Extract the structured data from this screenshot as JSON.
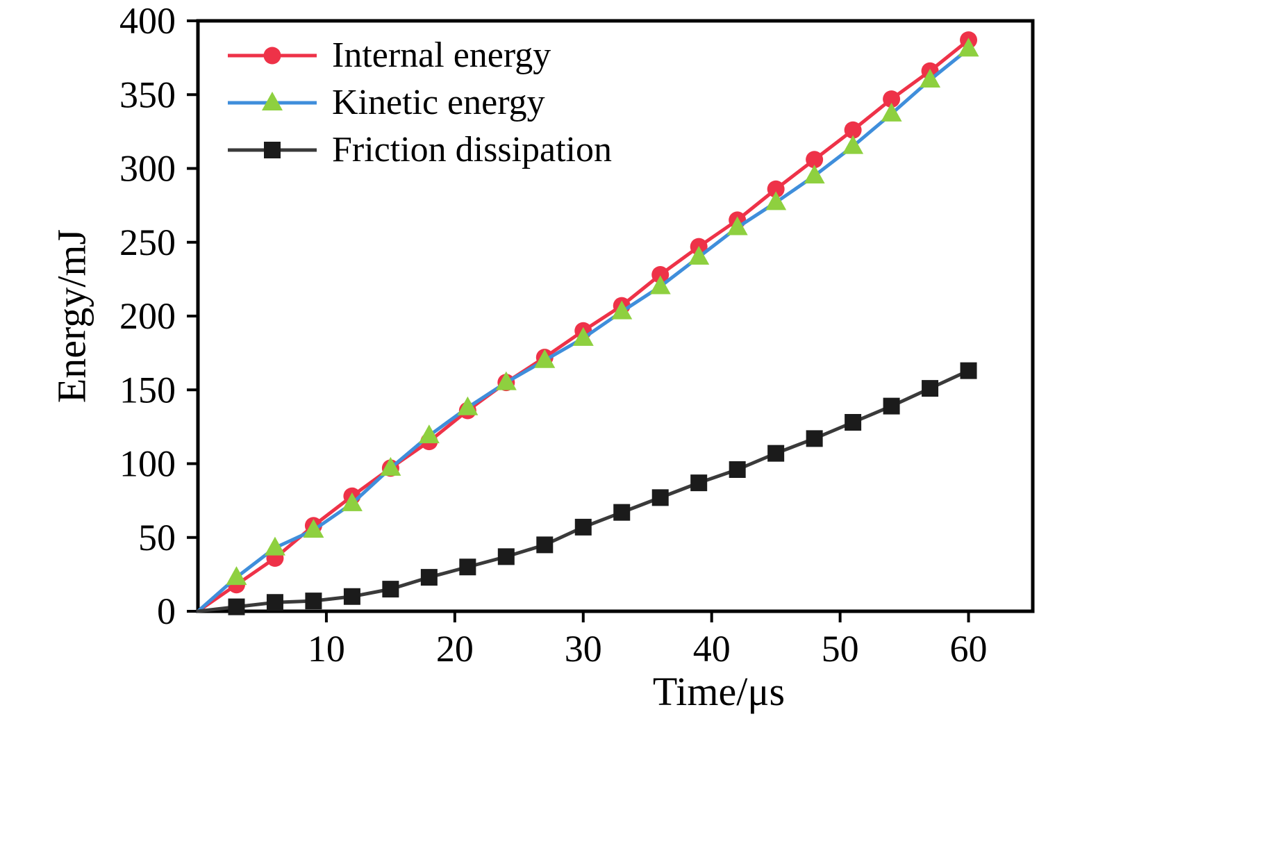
{
  "figure": {
    "background": "#ffffff"
  },
  "chart_data": {
    "type": "line",
    "title": "",
    "xlabel": "Time/μs",
    "ylabel": "Energy/mJ",
    "xlim": [
      0,
      65
    ],
    "ylim": [
      0,
      400
    ],
    "xticks": [
      10,
      20,
      30,
      40,
      50,
      60
    ],
    "yticks": [
      0,
      50,
      100,
      150,
      200,
      250,
      300,
      350,
      400
    ],
    "grid": false,
    "legend_position": "top-left-inside",
    "axis_color": "#000000",
    "x": [
      0,
      3,
      6,
      9,
      12,
      15,
      18,
      21,
      24,
      27,
      30,
      33,
      36,
      39,
      42,
      45,
      48,
      51,
      54,
      57,
      60
    ],
    "series": [
      {
        "name": "Internal energy",
        "line_color": "#ee3248",
        "marker": "circle",
        "marker_color": "#ee3248",
        "values": [
          0,
          18,
          36,
          58,
          78,
          97,
          115,
          136,
          155,
          172,
          190,
          207,
          228,
          247,
          265,
          286,
          306,
          326,
          347,
          366,
          387
        ]
      },
      {
        "name": "Kinetic energy",
        "line_color": "#3f8edb",
        "marker": "triangle",
        "marker_color": "#8ed03f",
        "values": [
          0,
          23,
          43,
          55,
          73,
          97,
          119,
          138,
          155,
          170,
          185,
          203,
          220,
          240,
          260,
          277,
          295,
          315,
          337,
          360,
          381
        ]
      },
      {
        "name": "Friction dissipation",
        "line_color": "#3a3a3a",
        "marker": "square",
        "marker_color": "#1b1b1b",
        "values": [
          0,
          3,
          6,
          7,
          10,
          15,
          23,
          30,
          37,
          45,
          57,
          67,
          77,
          87,
          96,
          107,
          117,
          128,
          139,
          151,
          163
        ]
      }
    ]
  }
}
